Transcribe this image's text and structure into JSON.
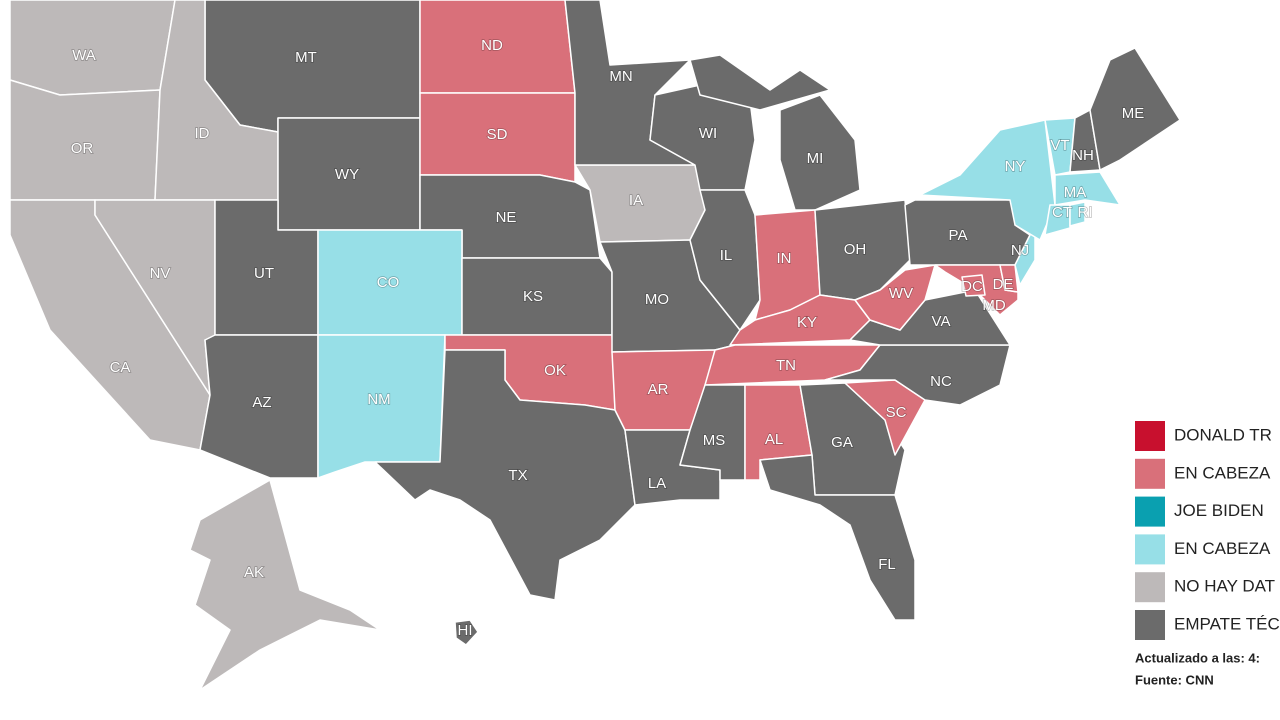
{
  "states": [
    {
      "label": "WA",
      "color": "#bdb9b9"
    },
    {
      "label": "OR",
      "color": "#bdb9b9"
    },
    {
      "label": "MT",
      "color": "#6b6b6b"
    },
    {
      "label": "ID",
      "color": "#bdb9b9"
    },
    {
      "label": "WY",
      "color": "#6b6b6b"
    },
    {
      "label": "ND",
      "color": "#d9707a"
    },
    {
      "label": "SD",
      "color": "#d9707a"
    },
    {
      "label": "NE",
      "color": "#6b6b6b"
    },
    {
      "label": "CA",
      "color": "#bdb9b9"
    },
    {
      "label": "NV",
      "color": "#bdb9b9"
    },
    {
      "label": "UT",
      "color": "#6b6b6b"
    },
    {
      "label": "CO",
      "color": "#97dfe7"
    },
    {
      "label": "AZ",
      "color": "#6b6b6b"
    },
    {
      "label": "NM",
      "color": "#97dfe7"
    },
    {
      "label": "KS",
      "color": "#6b6b6b"
    },
    {
      "label": "OK",
      "color": "#d9707a"
    },
    {
      "label": "TX",
      "color": "#6b6b6b"
    },
    {
      "label": "IA",
      "color": "#bdb9b9"
    },
    {
      "label": "MN",
      "color": "#6b6b6b"
    },
    {
      "label": "MO",
      "color": "#6b6b6b"
    },
    {
      "label": "AR",
      "color": "#d9707a"
    },
    {
      "label": "LA",
      "color": "#6b6b6b"
    },
    {
      "label": "WI",
      "color": "#6b6b6b"
    },
    {
      "label": "IL",
      "color": "#6b6b6b"
    },
    {
      "label": "MI",
      "color": "#6b6b6b"
    },
    {
      "label": "IN",
      "color": "#d9707a"
    },
    {
      "label": "OH",
      "color": "#6b6b6b"
    },
    {
      "label": "KY",
      "color": "#d9707a"
    },
    {
      "label": "TN",
      "color": "#d9707a"
    },
    {
      "label": "MS",
      "color": "#6b6b6b"
    },
    {
      "label": "AL",
      "color": "#d9707a"
    },
    {
      "label": "GA",
      "color": "#6b6b6b"
    },
    {
      "label": "FL",
      "color": "#6b6b6b"
    },
    {
      "label": "SC",
      "color": "#d9707a"
    },
    {
      "label": "NC",
      "color": "#6b6b6b"
    },
    {
      "label": "VA",
      "color": "#6b6b6b"
    },
    {
      "label": "WV",
      "color": "#d9707a"
    },
    {
      "label": "PA",
      "color": "#6b6b6b"
    },
    {
      "label": "MD",
      "color": "#d9707a"
    },
    {
      "label": "DE",
      "color": "#d9707a"
    },
    {
      "label": "DC",
      "color": "#d9707a"
    },
    {
      "label": "NJ",
      "color": "#97dfe7"
    },
    {
      "label": "NY",
      "color": "#97dfe7"
    },
    {
      "label": "VT",
      "color": "#97dfe7"
    },
    {
      "label": "NH",
      "color": "#6b6b6b"
    },
    {
      "label": "ME",
      "color": "#6b6b6b"
    },
    {
      "label": "MA",
      "color": "#97dfe7"
    },
    {
      "label": "CT",
      "color": "#97dfe7"
    },
    {
      "label": "RI",
      "color": "#97dfe7"
    },
    {
      "label": "AK",
      "color": "#bdb9b9"
    },
    {
      "label": "HI",
      "color": "#6b6b6b"
    }
  ],
  "legend": [
    {
      "label": "DONALD TR",
      "color": "#c8102e"
    },
    {
      "label": "EN CABEZA",
      "color": "#d9707a"
    },
    {
      "label": "JOE BIDEN",
      "color": "#0aa0b0"
    },
    {
      "label": "EN CABEZA",
      "color": "#97dfe7"
    },
    {
      "label": "NO HAY DAT",
      "color": "#bdb9b9"
    },
    {
      "label": "EMPATE TÉC",
      "color": "#6b6b6b"
    }
  ],
  "footer": {
    "updated": "Actualizado a las: 4:",
    "source": "Fuente: CNN"
  }
}
